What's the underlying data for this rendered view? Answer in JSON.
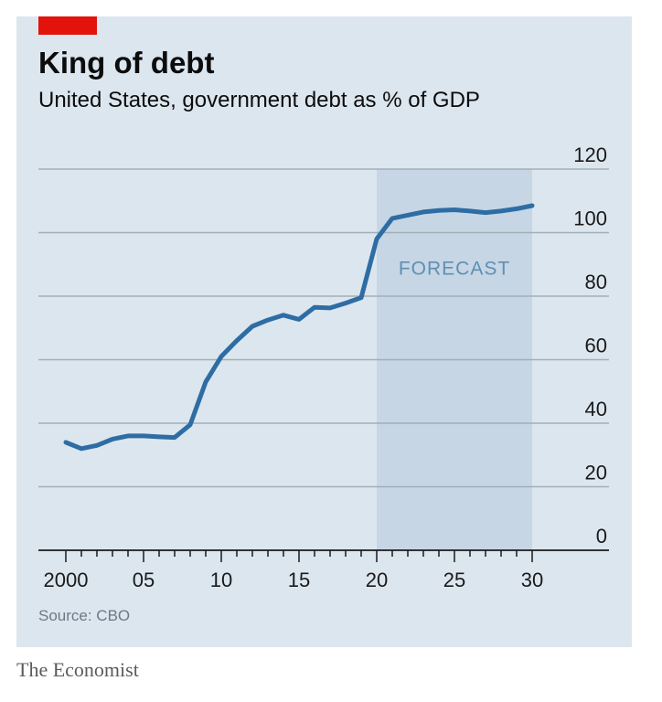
{
  "header": {
    "title": "King of debt",
    "subtitle": "United States, government debt as % of GDP"
  },
  "footer": {
    "source": "Source: CBO",
    "brand": "The Economist"
  },
  "colors": {
    "accent": "#e3120b",
    "line": "#2e6da4",
    "panel": "#dce6ef",
    "forecast_shade": "#c6d6e4"
  },
  "chart_data": {
    "type": "line",
    "title": "King of debt",
    "subtitle": "United States, government debt as % of GDP",
    "xlabel": "",
    "ylabel": "",
    "xlim": [
      2000,
      2030
    ],
    "ylim": [
      0,
      120
    ],
    "y_ticks": [
      0,
      20,
      40,
      60,
      80,
      100,
      120
    ],
    "x_ticks": [
      2000,
      2005,
      2010,
      2015,
      2020,
      2025,
      2030
    ],
    "x_tick_labels": [
      "2000",
      "05",
      "10",
      "15",
      "20",
      "25",
      "30"
    ],
    "grid": true,
    "y_axis_side": "right",
    "forecast": {
      "start": 2020,
      "end": 2030,
      "label": "FORECAST"
    },
    "series": [
      {
        "x": [
          2000,
          2001,
          2002,
          2003,
          2004,
          2005,
          2006,
          2007,
          2008,
          2009,
          2010,
          2011,
          2012,
          2013,
          2014,
          2015,
          2016,
          2017,
          2018,
          2019,
          2020,
          2021,
          2022,
          2023,
          2024,
          2025,
          2026,
          2027,
          2028,
          2029,
          2030
        ],
        "values": [
          34,
          32,
          33,
          35,
          36,
          36,
          35.7,
          35.5,
          39.5,
          53,
          61,
          66,
          70.5,
          72.5,
          74,
          72.7,
          76.5,
          76.3,
          77.8,
          79.5,
          98,
          104.5,
          105.5,
          106.5,
          107,
          107.2,
          106.8,
          106.3,
          106.8,
          107.5,
          108.5
        ]
      }
    ]
  }
}
